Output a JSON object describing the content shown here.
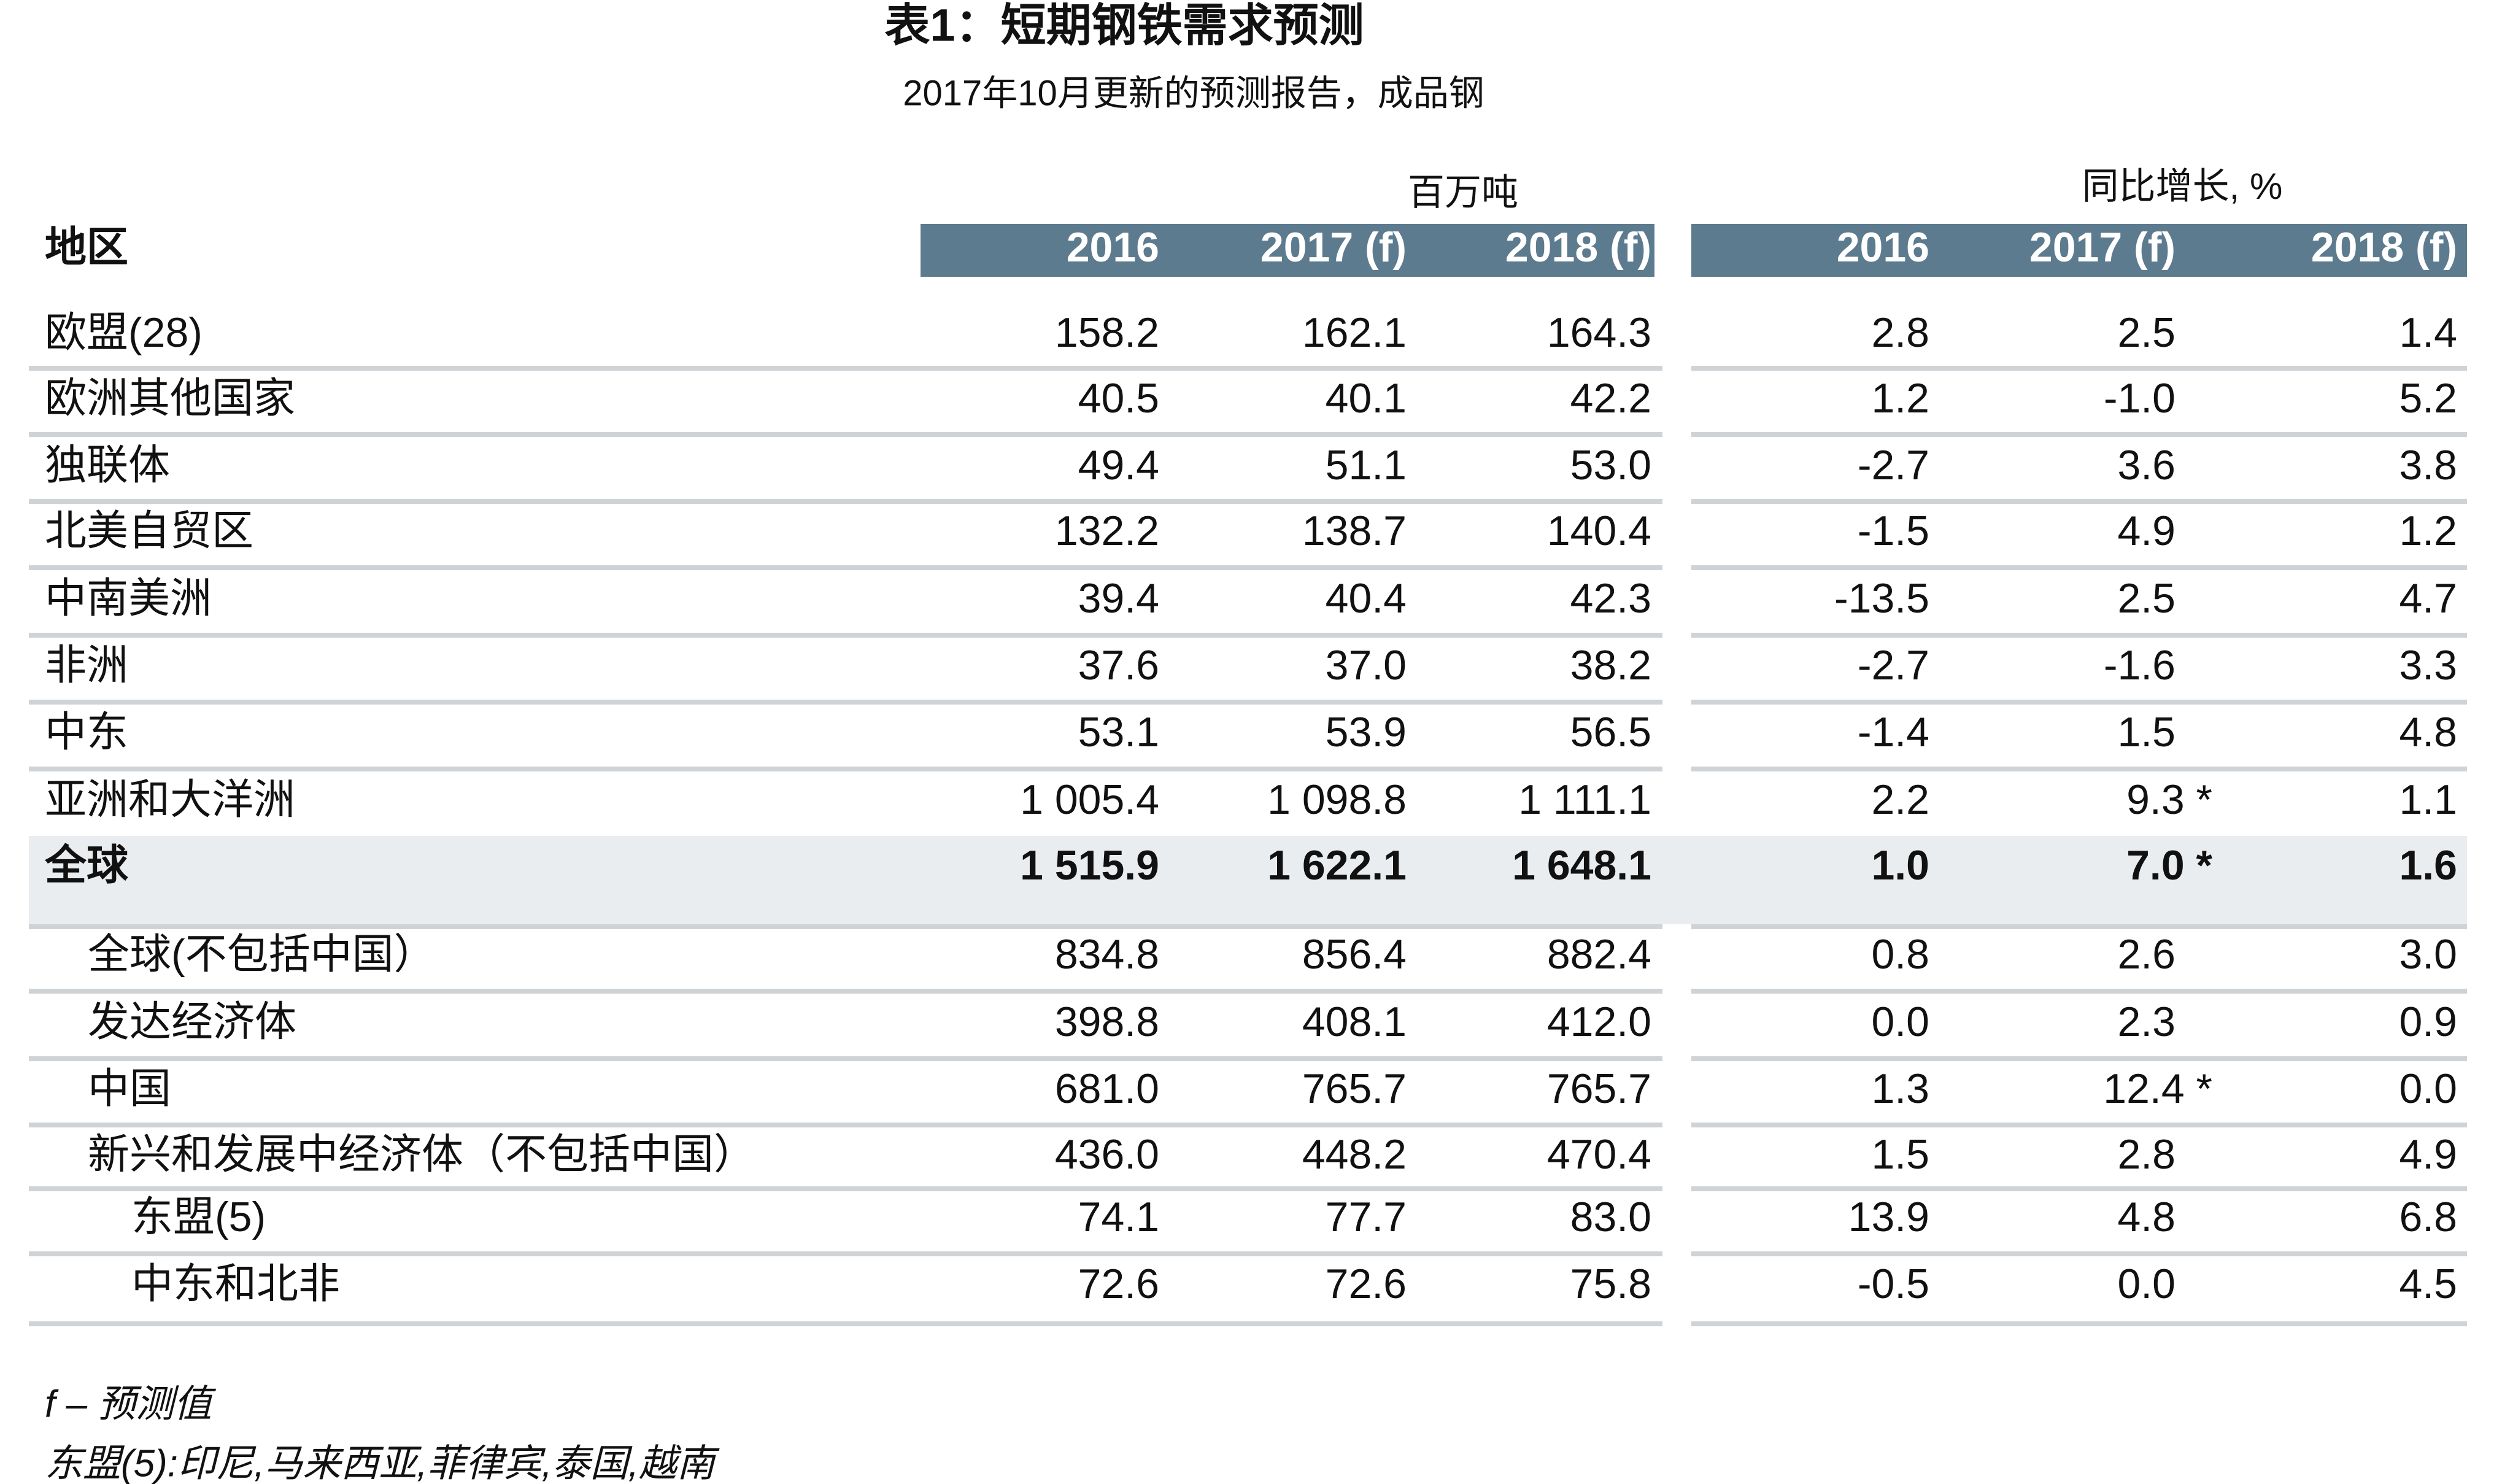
{
  "title": "表1：短期钢铁需求预测",
  "subtitle": "2017年10月更新的预测报告，成品钢",
  "table": {
    "region_header": "地区",
    "group_headers": [
      "百万吨",
      "同比增长, %"
    ],
    "columns": [
      "2016",
      "2017 (f)",
      "2018 (f)",
      "2016",
      "2017 (f)",
      "2018 (f)"
    ],
    "rows": [
      [
        "欧盟(28)",
        "158.2",
        "162.1",
        "164.3",
        "2.8",
        "2.5",
        "1.4"
      ],
      [
        "欧洲其他国家",
        "40.5",
        "40.1",
        "42.2",
        "1.2",
        "-1.0",
        "5.2"
      ],
      [
        "独联体",
        "49.4",
        "51.1",
        "53.0",
        "-2.7",
        "3.6",
        "3.8"
      ],
      [
        "北美自贸区",
        "132.2",
        "138.7",
        "140.4",
        "-1.5",
        "4.9",
        "1.2"
      ],
      [
        "中南美洲",
        "39.4",
        "40.4",
        "42.3",
        "-13.5",
        "2.5",
        "4.7"
      ],
      [
        "非洲",
        "37.6",
        "37.0",
        "38.2",
        "-2.7",
        "-1.6",
        "3.3"
      ],
      [
        "中东",
        "53.1",
        "53.9",
        "56.5",
        "-1.4",
        "1.5",
        "4.8"
      ],
      [
        "亚洲和大洋洲",
        "1 005.4",
        "1 098.8",
        "1 111.1",
        "2.2",
        "9.3 *",
        "1.1"
      ],
      [
        "全球",
        "1 515.9",
        "1 622.1",
        "1 648.1",
        "1.0",
        "7.0 *",
        "1.6"
      ],
      [
        "全球(不包括中国）",
        "834.8",
        "856.4",
        "882.4",
        "0.8",
        "2.6",
        "3.0"
      ],
      [
        "发达经济体",
        "398.8",
        "408.1",
        "412.0",
        "0.0",
        "2.3",
        "0.9"
      ],
      [
        "中国",
        "681.0",
        "765.7",
        "765.7",
        "1.3",
        "12.4 *",
        "0.0"
      ],
      [
        "新兴和发展中经济体（不包括中国）",
        "436.0",
        "448.2",
        "470.4",
        "1.5",
        "2.8",
        "4.9"
      ],
      [
        "东盟(5)",
        "74.1",
        "77.7",
        "83.0",
        "13.9",
        "4.8",
        "6.8"
      ],
      [
        "中东和北非",
        "72.6",
        "72.6",
        "75.8",
        "-0.5",
        "0.0",
        "4.5"
      ]
    ]
  },
  "notes": [
    "f – 预测值",
    "东盟(5):印尼,马来西亚,菲律宾,泰国,越南"
  ]
}
